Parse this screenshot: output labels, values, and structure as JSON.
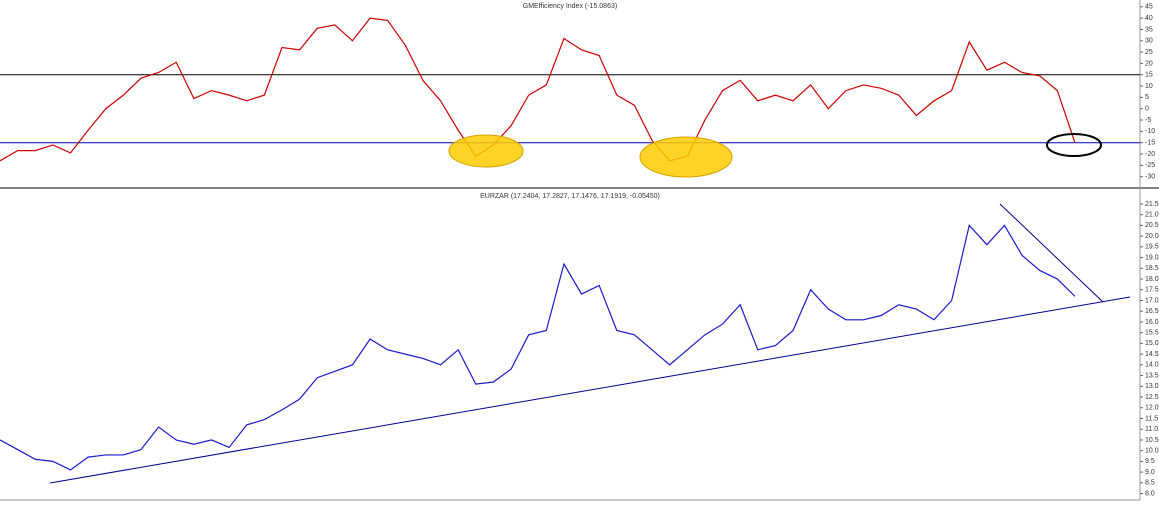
{
  "chart_data": [
    {
      "type": "line",
      "title": "GMEfficiency Index (-15.0863)",
      "color": "#cc0000",
      "values": [
        -23,
        -18.5,
        -18.5,
        -16,
        -19.5,
        -9.5,
        0,
        6,
        13.5,
        16,
        20.5,
        4.5,
        8,
        6,
        3.5,
        6,
        27,
        26,
        35.5,
        37,
        30,
        40,
        39,
        28,
        12.5,
        3.5,
        -9.5,
        -21,
        -16,
        -7.5,
        6,
        10.5,
        31,
        26,
        23.5,
        6,
        1.5,
        -14,
        -23,
        -21,
        -5,
        8,
        12.5,
        3.5,
        6,
        3.5,
        10.5,
        0,
        8,
        10.5,
        9,
        6,
        -3,
        3.5,
        8,
        29.5,
        17,
        20.5,
        16,
        14.5,
        8,
        -15.0863
      ],
      "ylim": [
        -35,
        48
      ],
      "yticks": [
        -30,
        -25,
        -20,
        -15,
        -10,
        -5,
        0,
        5,
        10,
        15,
        20,
        25,
        30,
        35,
        40,
        45
      ],
      "hlines": [
        {
          "value": 15,
          "color": "#000000"
        },
        {
          "value": -15,
          "color": "#0000aa"
        }
      ]
    },
    {
      "type": "line",
      "title": "EURZAR (17.2404, 17.2827, 17.1476, 17.1919, -0.05450)",
      "color": "#1a1acc",
      "values": [
        10.5,
        10.05,
        9.6,
        9.5,
        9.1,
        9.7,
        9.8,
        9.8,
        10.05,
        11.1,
        10.5,
        10.3,
        10.5,
        10.15,
        11.2,
        11.45,
        11.9,
        12.4,
        13.4,
        13.7,
        14.0,
        15.2,
        14.7,
        14.5,
        14.3,
        14.0,
        14.7,
        13.1,
        13.2,
        13.8,
        15.4,
        15.6,
        18.7,
        17.3,
        17.7,
        15.6,
        15.4,
        14.7,
        14.0,
        14.7,
        15.4,
        15.9,
        16.8,
        14.7,
        14.9,
        15.6,
        17.5,
        16.6,
        16.1,
        16.1,
        16.3,
        16.8,
        16.6,
        16.1,
        17.0,
        20.5,
        19.6,
        20.5,
        19.1,
        18.4,
        18.0,
        17.1919
      ],
      "ylim": [
        7.7,
        22.15
      ],
      "yticks": [
        {
          "value": 8,
          "label": "8.0"
        },
        8.5,
        {
          "value": 9,
          "label": "9.0"
        },
        9.5,
        {
          "value": 10,
          "label": "10.0"
        },
        10.5,
        {
          "value": 11,
          "label": "11.0"
        },
        11.5,
        {
          "value": 12,
          "label": "12.0"
        },
        12.5,
        {
          "value": 13,
          "label": "13.0"
        },
        13.5,
        {
          "value": 14,
          "label": "14.0"
        },
        14.5,
        {
          "value": 15,
          "label": "15.0"
        },
        15.5,
        {
          "value": 16,
          "label": "16.0"
        },
        16.5,
        {
          "value": 17,
          "label": "17.0"
        },
        17.5,
        {
          "value": 18,
          "label": "18.0"
        },
        18.5,
        {
          "value": 19,
          "label": "19.0"
        },
        19.5,
        {
          "value": 20,
          "label": "20.0"
        },
        20.5,
        {
          "value": 21,
          "label": "21.0"
        },
        21.5
      ]
    }
  ]
}
